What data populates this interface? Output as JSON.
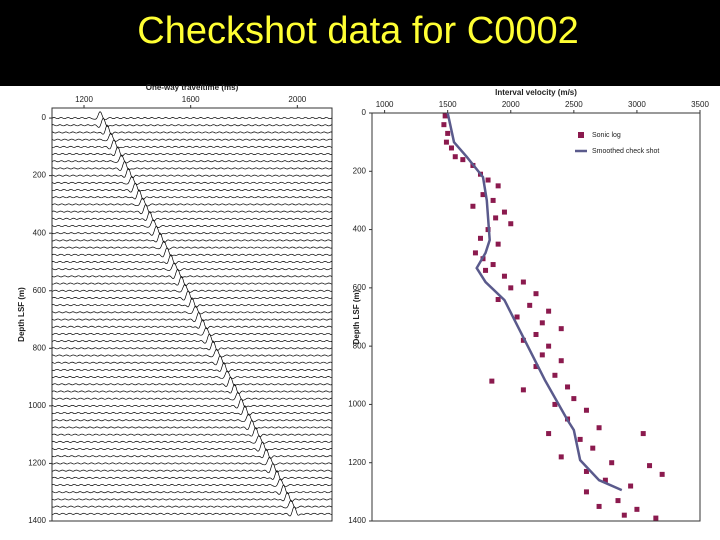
{
  "title": "Checkshot data for C0002",
  "chart_data": [
    {
      "type": "wiggle",
      "xlabel": "One-way traveltime (ms)",
      "ylabel": "Depth LSF (m)",
      "xlim": [
        1080,
        2130
      ],
      "xticks": [
        1200,
        1600,
        2000
      ],
      "ylim": [
        1400,
        -35
      ],
      "yticks": [
        0,
        200,
        400,
        600,
        800,
        1000,
        1200,
        1400
      ],
      "color": "#000000",
      "x": [
        1260,
        1273,
        1287,
        1300,
        1313,
        1326,
        1340,
        1353,
        1366,
        1379,
        1393,
        1406,
        1419,
        1432,
        1446,
        1459,
        1472,
        1485,
        1499,
        1512,
        1525,
        1538,
        1552,
        1565,
        1578,
        1591,
        1605,
        1618,
        1631,
        1644,
        1658,
        1671,
        1684,
        1697,
        1711,
        1724,
        1737,
        1750,
        1764,
        1777,
        1790,
        1803,
        1817,
        1830,
        1843,
        1856,
        1870,
        1883,
        1896,
        1909,
        1923,
        1936,
        1949,
        1962,
        1976,
        1989
      ],
      "y": [
        0,
        25,
        50,
        75,
        100,
        125,
        150,
        175,
        200,
        225,
        250,
        275,
        300,
        325,
        350,
        375,
        400,
        425,
        450,
        475,
        500,
        525,
        550,
        575,
        600,
        625,
        650,
        675,
        700,
        725,
        750,
        775,
        800,
        825,
        850,
        875,
        900,
        925,
        950,
        975,
        1000,
        1025,
        1050,
        1075,
        1100,
        1125,
        1150,
        1175,
        1200,
        1225,
        1250,
        1275,
        1300,
        1325,
        1350,
        1375
      ]
    },
    {
      "type": "scatter",
      "xlabel": "Interval velocity (m/s)",
      "ylabel": "Depth LSF (m)",
      "xlim": [
        900,
        3500
      ],
      "xticks": [
        1000,
        1500,
        2000,
        2500,
        3000,
        3500
      ],
      "ylim": [
        1400,
        0
      ],
      "yticks": [
        0,
        200,
        400,
        600,
        800,
        1000,
        1200,
        1400
      ],
      "legend": "upper right",
      "series": [
        {
          "name": "Sonic log",
          "color": "#8b1a4e",
          "mode": "markers",
          "x": [
            1480,
            1470,
            1500,
            1490,
            1530,
            1560,
            1620,
            1700,
            1760,
            1820,
            1900,
            1780,
            1860,
            1700,
            1950,
            1880,
            2000,
            1820,
            1760,
            1900,
            1720,
            1780,
            1860,
            1800,
            1950,
            2100,
            2000,
            2200,
            1900,
            2150,
            2300,
            2050,
            2250,
            2400,
            2200,
            2100,
            2300,
            2250,
            2400,
            2200,
            2350,
            1850,
            2450,
            2100,
            2500,
            2350,
            2600,
            2450,
            2700,
            2300,
            2550,
            3050,
            2650,
            2400,
            2800,
            2600,
            3100,
            2750,
            2950,
            2600,
            3200,
            2850,
            2700,
            3000,
            2900,
            3150
          ],
          "values": [
            10,
            40,
            70,
            100,
            120,
            150,
            160,
            180,
            210,
            230,
            250,
            280,
            300,
            320,
            340,
            360,
            380,
            400,
            430,
            450,
            480,
            500,
            520,
            540,
            560,
            580,
            600,
            620,
            640,
            660,
            680,
            700,
            720,
            740,
            760,
            780,
            800,
            830,
            850,
            870,
            900,
            920,
            940,
            950,
            980,
            1000,
            1020,
            1050,
            1080,
            1100,
            1120,
            1100,
            1150,
            1180,
            1200,
            1230,
            1210,
            1260,
            1280,
            1300,
            1240,
            1330,
            1350,
            1360,
            1380,
            1390
          ]
        },
        {
          "name": "Smoothed check shot",
          "color": "#5a5a8c",
          "mode": "line",
          "x": [
            1500,
            1550,
            1650,
            1780,
            1810,
            1833,
            1800,
            1730,
            1800,
            1950,
            2150,
            2270,
            2450,
            2500,
            2550,
            2700,
            2880
          ],
          "values": [
            0,
            100,
            150,
            220,
            300,
            436,
            480,
            532,
            580,
            642,
            813,
            916,
            1054,
            1088,
            1191,
            1260,
            1294
          ]
        }
      ]
    }
  ]
}
